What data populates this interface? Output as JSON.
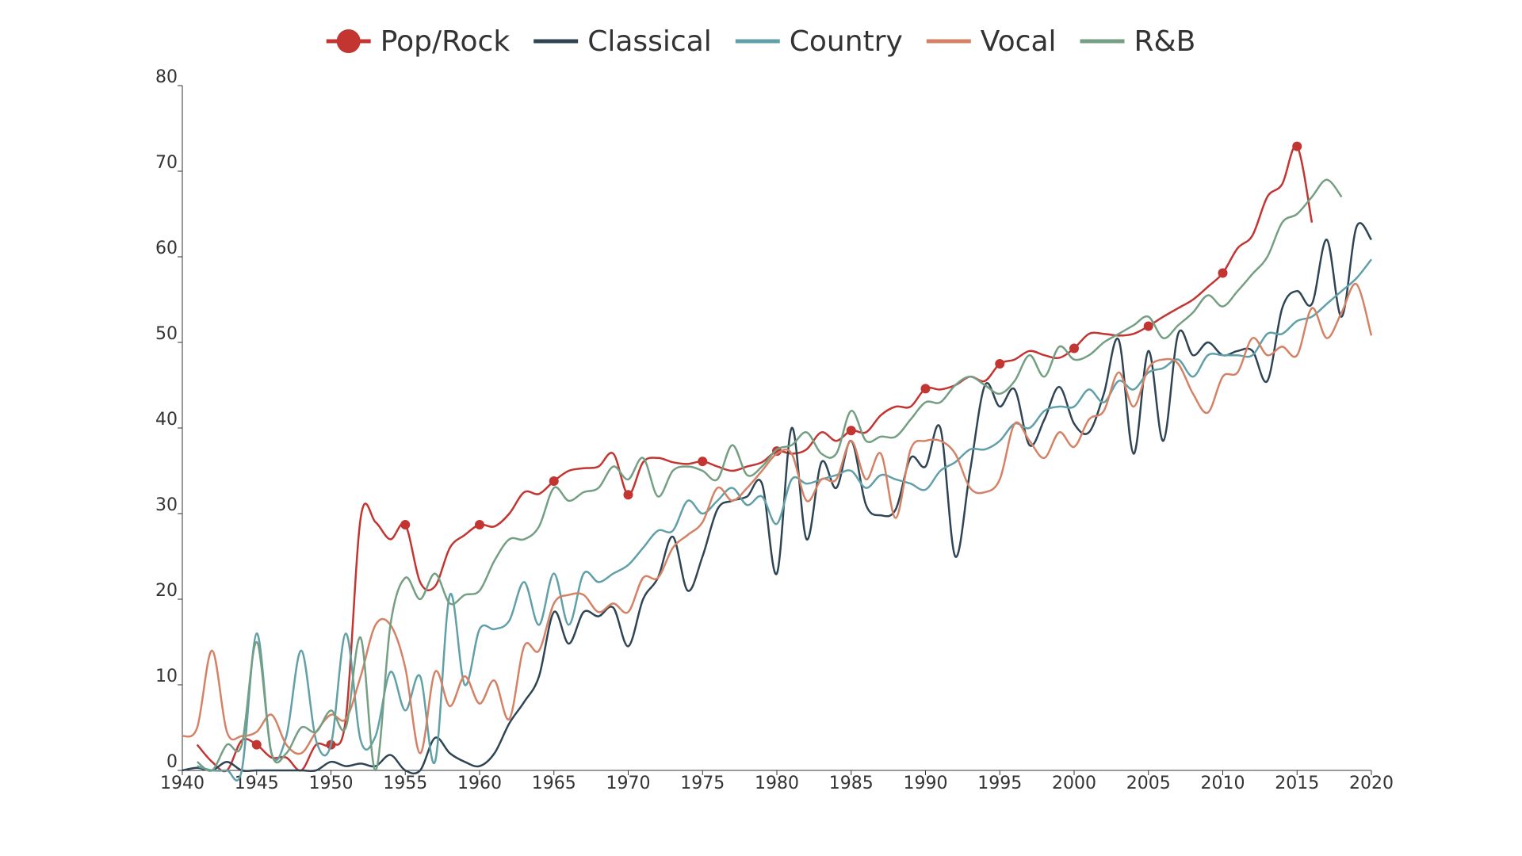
{
  "chart_data": {
    "type": "line",
    "x": [
      1940,
      1941,
      1942,
      1943,
      1944,
      1945,
      1946,
      1947,
      1948,
      1949,
      1950,
      1951,
      1952,
      1953,
      1954,
      1955,
      1956,
      1957,
      1958,
      1959,
      1960,
      1961,
      1962,
      1963,
      1964,
      1965,
      1966,
      1967,
      1968,
      1969,
      1970,
      1971,
      1972,
      1973,
      1974,
      1975,
      1976,
      1977,
      1978,
      1979,
      1980,
      1981,
      1982,
      1983,
      1984,
      1985,
      1986,
      1987,
      1988,
      1989,
      1990,
      1991,
      1992,
      1993,
      1994,
      1995,
      1996,
      1997,
      1998,
      1999,
      2000,
      2001,
      2002,
      2003,
      2004,
      2005,
      2006,
      2007,
      2008,
      2009,
      2010,
      2011,
      2012,
      2013,
      2014,
      2015,
      2016,
      2017,
      2018,
      2019,
      2020
    ],
    "xlim": [
      1940,
      2020
    ],
    "xticks": [
      1940,
      1945,
      1950,
      1955,
      1960,
      1965,
      1970,
      1975,
      1980,
      1985,
      1990,
      1995,
      2000,
      2005,
      2010,
      2015,
      2020
    ],
    "ylim": [
      0,
      80
    ],
    "yticks": [
      0,
      10,
      20,
      30,
      40,
      50,
      60,
      70,
      80
    ],
    "grid": false,
    "smooth": true,
    "legend_position": "top",
    "series": [
      {
        "name": "Pop/Rock",
        "color": "#c23531",
        "marker": "circle",
        "marker_step": 5,
        "values": [
          null,
          3,
          1,
          0,
          3.5,
          3,
          1.5,
          1.5,
          0,
          3,
          3,
          6,
          29.5,
          29,
          27,
          28.7,
          22,
          21.5,
          26,
          27.5,
          28.7,
          28.5,
          30,
          32.5,
          32.3,
          33.8,
          35,
          35.3,
          35.5,
          37,
          32.2,
          36,
          36.5,
          36,
          35.8,
          36.1,
          35.5,
          35,
          35.5,
          36,
          37.3,
          37,
          37.5,
          39.5,
          38.5,
          39.7,
          39.5,
          41.5,
          42.5,
          42.5,
          44.6,
          44.5,
          45,
          46,
          45.5,
          47.5,
          48,
          49,
          48.5,
          48.2,
          49.3,
          51,
          51,
          50.8,
          51,
          51.9,
          53,
          54,
          55,
          56.5,
          58.1,
          61,
          62.5,
          67,
          68.5,
          72.9,
          64,
          null,
          null,
          null,
          null
        ]
      },
      {
        "name": "Classical",
        "color": "#2f4554",
        "values": [
          0,
          0.3,
          0,
          1,
          0,
          0,
          0,
          0,
          0,
          0,
          1,
          0.5,
          0.8,
          0.5,
          1.8,
          0,
          0,
          3.8,
          2,
          1,
          0.5,
          2,
          5.5,
          8,
          11,
          18.5,
          14.8,
          18.5,
          18,
          19,
          14.5,
          20,
          22.5,
          27.3,
          21,
          25,
          30.5,
          31.5,
          32,
          33.5,
          23,
          40,
          27,
          36,
          33,
          38.5,
          31,
          29.8,
          30.5,
          36.5,
          35.5,
          40,
          25,
          35,
          45,
          42.5,
          44.5,
          38,
          41,
          44.8,
          40.5,
          39.5,
          44,
          50.3,
          37,
          49,
          38.5,
          51,
          48.5,
          50,
          48.5,
          49,
          49,
          45.5,
          54,
          56,
          54.5,
          62,
          53,
          63.5,
          62
        ]
      },
      {
        "name": "Country",
        "color": "#61a0a8",
        "values": [
          null,
          0.5,
          0,
          0,
          0,
          16,
          2,
          4,
          14,
          3.5,
          3,
          16,
          3.5,
          4,
          11.5,
          7,
          11,
          1,
          20.5,
          10,
          16.5,
          16.5,
          17.5,
          22,
          17,
          23,
          17,
          23,
          22,
          23,
          24,
          26,
          28,
          28,
          31.5,
          30,
          31.5,
          33,
          31,
          32,
          28.8,
          34,
          33.5,
          34,
          34.5,
          35,
          33,
          34.5,
          34,
          33.5,
          32.8,
          35,
          36,
          37.5,
          37.5,
          38.5,
          40.5,
          40,
          42,
          42.5,
          42.5,
          44.5,
          43,
          45.5,
          44.5,
          46.5,
          47,
          48,
          46,
          48.5,
          48.5,
          48.5,
          48.5,
          51,
          51,
          52.5,
          53,
          54.5,
          56,
          57.5,
          59.7
        ]
      },
      {
        "name": "Vocal",
        "color": "#d48265",
        "values": [
          4,
          5,
          14,
          4.5,
          4,
          4.5,
          6.5,
          3,
          2,
          4.5,
          6.5,
          6,
          11,
          17,
          17,
          12,
          2,
          11.5,
          7.5,
          11,
          7.8,
          10.5,
          6,
          14.5,
          14,
          19.5,
          20.5,
          20.5,
          18.5,
          19.5,
          18.5,
          22.5,
          22.5,
          26,
          27.5,
          29,
          33,
          31.5,
          33,
          35,
          37,
          37,
          31.5,
          34,
          34,
          38.5,
          34,
          37,
          29.5,
          37.5,
          38.5,
          38.5,
          37,
          33,
          32.5,
          34,
          40.5,
          38.5,
          36.5,
          39.5,
          37.8,
          41,
          42,
          46.5,
          42.5,
          47,
          48,
          47.5,
          44,
          41.8,
          46,
          46.5,
          50.5,
          48.5,
          49.5,
          48.5,
          54,
          50.5,
          53.5,
          56.8,
          50.8
        ]
      },
      {
        "name": "R&B",
        "color": "#749f83",
        "values": [
          null,
          1,
          0,
          3,
          3,
          15,
          2,
          2,
          5,
          4.5,
          7,
          5,
          15.5,
          0,
          17,
          22.5,
          20,
          23,
          19.5,
          20.5,
          21,
          24.5,
          27,
          27,
          28.5,
          33,
          31.5,
          32.5,
          33,
          35.5,
          34,
          36.5,
          32,
          35,
          35.5,
          35,
          34,
          38,
          34.5,
          35.5,
          37.5,
          38,
          39.5,
          37,
          37,
          42,
          38.5,
          39,
          39,
          41,
          43,
          43,
          45,
          46,
          45,
          44,
          45.5,
          48.5,
          46,
          49.5,
          48,
          48.5,
          50,
          51,
          52,
          53,
          50.5,
          52,
          53.5,
          55.5,
          54.2,
          56,
          58,
          60,
          64,
          65,
          67,
          69,
          67,
          null,
          null
        ]
      }
    ]
  }
}
